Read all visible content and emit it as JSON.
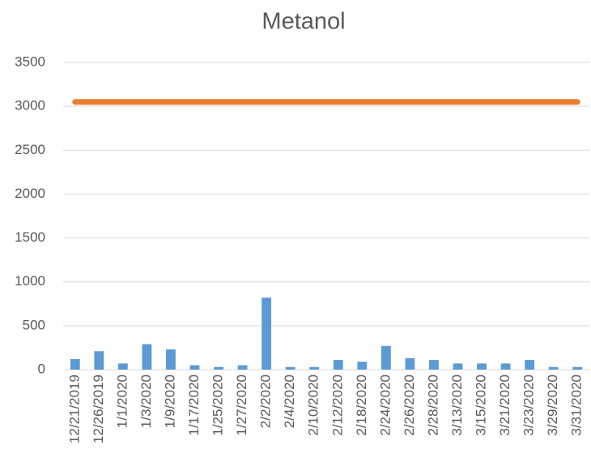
{
  "chart_data": {
    "type": "bar",
    "title": "Metanol",
    "categories": [
      "12/21/2019",
      "12/26/2019",
      "1/1/2020",
      "1/3/2020",
      "1/9/2020",
      "1/17/2020",
      "1/25/2020",
      "1/27/2020",
      "2/2/2020",
      "2/4/2020",
      "2/10/2020",
      "2/12/2020",
      "2/18/2020",
      "2/24/2020",
      "2/26/2020",
      "2/28/2020",
      "3/13/2020",
      "3/15/2020",
      "3/21/2020",
      "3/23/2020",
      "3/29/2020",
      "3/31/2020"
    ],
    "series": [
      {
        "type": "bar",
        "color": "#5b9bd5",
        "values": [
          120,
          210,
          70,
          290,
          230,
          50,
          30,
          50,
          820,
          30,
          30,
          110,
          90,
          270,
          130,
          110,
          70,
          70,
          70,
          110,
          30,
          30
        ]
      },
      {
        "type": "line",
        "color": "#ed7d31",
        "values": [
          3050,
          3050,
          3050,
          3050,
          3050,
          3050,
          3050,
          3050,
          3050,
          3050,
          3050,
          3050,
          3050,
          3050,
          3050,
          3050,
          3050,
          3050,
          3050,
          3050,
          3050,
          3050
        ]
      }
    ],
    "ylim": [
      0,
      3500
    ],
    "yticks": [
      0,
      500,
      1000,
      1500,
      2000,
      2500,
      3000,
      3500
    ],
    "grid": true
  }
}
